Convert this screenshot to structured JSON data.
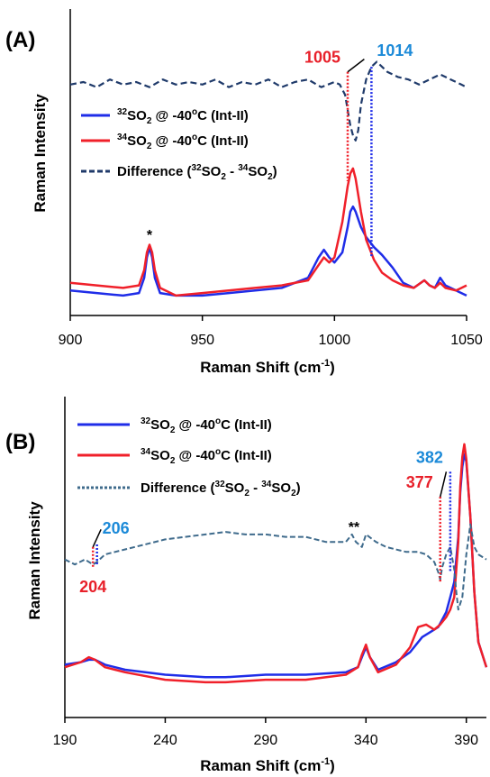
{
  "colors": {
    "s32": "#1f2de8",
    "s34": "#f0202a",
    "diffA": "#1f3a6a",
    "diffB": "#3f6b8c",
    "red_text": "#e8202a",
    "blue_text": "#1c8ad8",
    "axis": "#000000"
  },
  "chart_data": [
    {
      "panel": "(A)",
      "type": "line",
      "xlabel": "Raman Shift (cm",
      "xlabel_sup": "-1",
      "xlabel_close": ")",
      "ylabel": "Raman Intensity",
      "xlim": [
        900,
        1050
      ],
      "ylim": [
        0,
        1
      ],
      "xticks": [
        900,
        950,
        1000,
        1050
      ],
      "y_axis_ticks_shown": false,
      "grid": false,
      "legend_position": "left",
      "legend": [
        {
          "pre": "",
          "sup": "32",
          "main": "SO",
          "sub": "2",
          "rest": " @ -40",
          "sup2": "o",
          "tail": "C (Int-II)",
          "style": "blue-solid"
        },
        {
          "pre": "",
          "sup": "34",
          "main": "SO",
          "sub": "2",
          "rest": " @ -40",
          "sup2": "o",
          "tail": "C (Int-II)",
          "style": "red-solid"
        },
        {
          "pre": "Difference (",
          "sup": "32",
          "main": "SO",
          "sub": "2",
          "rest": " - ",
          "sup3": "34",
          "main3": "SO",
          "sub3": "2",
          "tail": ")",
          "style": "navy-dashed"
        }
      ],
      "series": [
        {
          "name": "32SO2 @ -40oC (Int-II)",
          "color": "#1f2de8",
          "x": [
            900,
            910,
            920,
            926,
            928,
            929,
            930,
            931,
            932,
            934,
            940,
            950,
            960,
            970,
            980,
            990,
            994,
            996,
            998,
            1000,
            1003,
            1005,
            1006,
            1007,
            1008,
            1010,
            1012,
            1015,
            1018,
            1022,
            1026,
            1030,
            1034,
            1036,
            1038,
            1040,
            1042,
            1046,
            1050
          ],
          "y": [
            0.07,
            0.06,
            0.05,
            0.06,
            0.12,
            0.2,
            0.24,
            0.2,
            0.12,
            0.06,
            0.05,
            0.05,
            0.06,
            0.07,
            0.08,
            0.12,
            0.2,
            0.23,
            0.2,
            0.18,
            0.22,
            0.32,
            0.38,
            0.4,
            0.38,
            0.32,
            0.28,
            0.24,
            0.21,
            0.16,
            0.1,
            0.08,
            0.11,
            0.09,
            0.08,
            0.12,
            0.09,
            0.07,
            0.05
          ]
        },
        {
          "name": "34SO2 @ -40oC (Int-II)",
          "color": "#f0202a",
          "x": [
            900,
            910,
            920,
            926,
            928,
            929,
            930,
            931,
            932,
            934,
            940,
            950,
            960,
            970,
            980,
            990,
            994,
            996,
            998,
            1000,
            1003,
            1005,
            1006,
            1007,
            1008,
            1010,
            1012,
            1015,
            1018,
            1022,
            1026,
            1030,
            1034,
            1036,
            1038,
            1040,
            1042,
            1046,
            1050
          ],
          "y": [
            0.1,
            0.09,
            0.08,
            0.09,
            0.15,
            0.22,
            0.25,
            0.22,
            0.15,
            0.08,
            0.05,
            0.06,
            0.07,
            0.08,
            0.09,
            0.11,
            0.17,
            0.2,
            0.18,
            0.2,
            0.34,
            0.48,
            0.53,
            0.55,
            0.51,
            0.38,
            0.27,
            0.19,
            0.14,
            0.11,
            0.09,
            0.08,
            0.11,
            0.09,
            0.08,
            0.1,
            0.08,
            0.07,
            0.09
          ]
        },
        {
          "name": "Difference (32SO2 - 34SO2)",
          "color": "#1f3a6a",
          "x": [
            900,
            905,
            910,
            915,
            920,
            925,
            930,
            935,
            940,
            945,
            950,
            955,
            960,
            965,
            970,
            975,
            980,
            985,
            990,
            995,
            1000,
            1002,
            1004,
            1005,
            1006,
            1007,
            1008,
            1009,
            1010,
            1012,
            1014,
            1016,
            1018,
            1020,
            1024,
            1028,
            1032,
            1036,
            1040,
            1044,
            1048,
            1050
          ],
          "y": [
            0.88,
            0.89,
            0.87,
            0.9,
            0.88,
            0.89,
            0.87,
            0.9,
            0.88,
            0.89,
            0.88,
            0.9,
            0.87,
            0.89,
            0.88,
            0.9,
            0.87,
            0.89,
            0.9,
            0.87,
            0.89,
            0.88,
            0.84,
            0.78,
            0.72,
            0.68,
            0.66,
            0.7,
            0.8,
            0.9,
            0.95,
            0.97,
            0.95,
            0.93,
            0.91,
            0.9,
            0.88,
            0.9,
            0.92,
            0.9,
            0.88,
            0.87
          ]
        }
      ],
      "annotations": [
        {
          "text": "1005",
          "x": 1005,
          "color": "red",
          "line_top": 0.93,
          "line_bottom": 0.5,
          "label_side": "left"
        },
        {
          "text": "1014",
          "x": 1014,
          "color": "blue",
          "line_top": 0.95,
          "line_bottom": 0.2,
          "label_side": "right"
        },
        {
          "text": "*",
          "x": 930,
          "y": 0.27
        }
      ]
    },
    {
      "panel": "(B)",
      "type": "line",
      "xlabel": "Raman Shift (cm",
      "xlabel_sup": "-1",
      "xlabel_close": ")",
      "ylabel": "Raman Intensity",
      "xlim": [
        190,
        400
      ],
      "ylim": [
        0,
        1
      ],
      "xticks": [
        190,
        240,
        290,
        340,
        390
      ],
      "y_axis_ticks_shown": false,
      "grid": false,
      "legend_position": "top-left",
      "legend": [
        {
          "pre": "",
          "sup": "32",
          "main": "SO",
          "sub": "2",
          "rest": " @ -40",
          "sup2": "o",
          "tail": "C (Int-II)",
          "style": "blue-solid"
        },
        {
          "pre": "",
          "sup": "34",
          "main": "SO",
          "sub": "2",
          "rest": " @ -40",
          "sup2": "o",
          "tail": "C (Int-II)",
          "style": "red-solid"
        },
        {
          "pre": "Difference (",
          "sup": "32",
          "main": "SO",
          "sub": "2",
          "rest": " - ",
          "sup3": "34",
          "main3": "SO",
          "sub3": "2",
          "tail": ")",
          "style": "steel-dotted"
        }
      ],
      "series": [
        {
          "name": "32SO2 @ -40oC (Int-II)",
          "color": "#1f2de8",
          "x": [
            190,
            198,
            202,
            205,
            210,
            220,
            240,
            260,
            270,
            290,
            310,
            330,
            336,
            338,
            340,
            342,
            346,
            355,
            362,
            368,
            372,
            376,
            378,
            380,
            382,
            384,
            386,
            387,
            388,
            389,
            390,
            392,
            394,
            396,
            400
          ],
          "y": [
            0.11,
            0.12,
            0.13,
            0.13,
            0.11,
            0.09,
            0.07,
            0.06,
            0.06,
            0.07,
            0.07,
            0.08,
            0.1,
            0.14,
            0.18,
            0.14,
            0.09,
            0.12,
            0.16,
            0.22,
            0.24,
            0.26,
            0.29,
            0.32,
            0.38,
            0.44,
            0.62,
            0.8,
            0.9,
            0.95,
            0.92,
            0.7,
            0.4,
            0.2,
            0.1
          ]
        },
        {
          "name": "34SO2 @ -40oC (Int-II)",
          "color": "#f0202a",
          "x": [
            190,
            198,
            202,
            205,
            210,
            220,
            240,
            260,
            270,
            290,
            310,
            330,
            336,
            338,
            340,
            342,
            346,
            355,
            362,
            366,
            370,
            374,
            377,
            380,
            382,
            384,
            386,
            387,
            388,
            389,
            390,
            392,
            394,
            396,
            400
          ],
          "y": [
            0.1,
            0.12,
            0.14,
            0.13,
            0.1,
            0.08,
            0.05,
            0.04,
            0.04,
            0.05,
            0.05,
            0.07,
            0.1,
            0.15,
            0.19,
            0.14,
            0.08,
            0.11,
            0.18,
            0.26,
            0.27,
            0.25,
            0.27,
            0.3,
            0.33,
            0.38,
            0.6,
            0.82,
            0.94,
            0.99,
            0.93,
            0.7,
            0.4,
            0.2,
            0.1
          ]
        },
        {
          "name": "Difference (32SO2 - 34SO2)",
          "color": "#3f6b8c",
          "x": [
            190,
            195,
            200,
            204,
            206,
            210,
            215,
            220,
            230,
            240,
            250,
            260,
            270,
            280,
            290,
            300,
            310,
            320,
            330,
            333,
            335,
            338,
            340,
            345,
            350,
            360,
            366,
            370,
            374,
            376,
            377,
            378,
            380,
            382,
            384,
            385,
            386,
            388,
            390,
            392,
            394,
            396,
            398,
            400
          ],
          "y": [
            0.53,
            0.51,
            0.53,
            0.51,
            0.52,
            0.55,
            0.56,
            0.57,
            0.59,
            0.61,
            0.62,
            0.63,
            0.64,
            0.63,
            0.63,
            0.62,
            0.62,
            0.6,
            0.6,
            0.63,
            0.6,
            0.58,
            0.63,
            0.6,
            0.58,
            0.56,
            0.56,
            0.55,
            0.52,
            0.48,
            0.45,
            0.5,
            0.55,
            0.58,
            0.49,
            0.4,
            0.33,
            0.38,
            0.55,
            0.67,
            0.58,
            0.55,
            0.54,
            0.53
          ]
        }
      ],
      "annotations": [
        {
          "text": "206",
          "x": 206,
          "color": "blue",
          "line_top": 0.59,
          "line_bottom": 0.51,
          "label_side": "right"
        },
        {
          "text": "204",
          "x": 204,
          "color": "red",
          "line_top": 0.58,
          "line_bottom": 0.5,
          "label_side": "below"
        },
        {
          "text": "382",
          "x": 382,
          "color": "blue",
          "line_top": 0.88,
          "line_bottom": 0.48,
          "label_side": "left"
        },
        {
          "text": "377",
          "x": 377,
          "color": "red",
          "line_top": 0.78,
          "line_bottom": 0.44,
          "label_side": "left"
        },
        {
          "text": "**",
          "x": 334,
          "y": 0.64
        }
      ]
    }
  ]
}
